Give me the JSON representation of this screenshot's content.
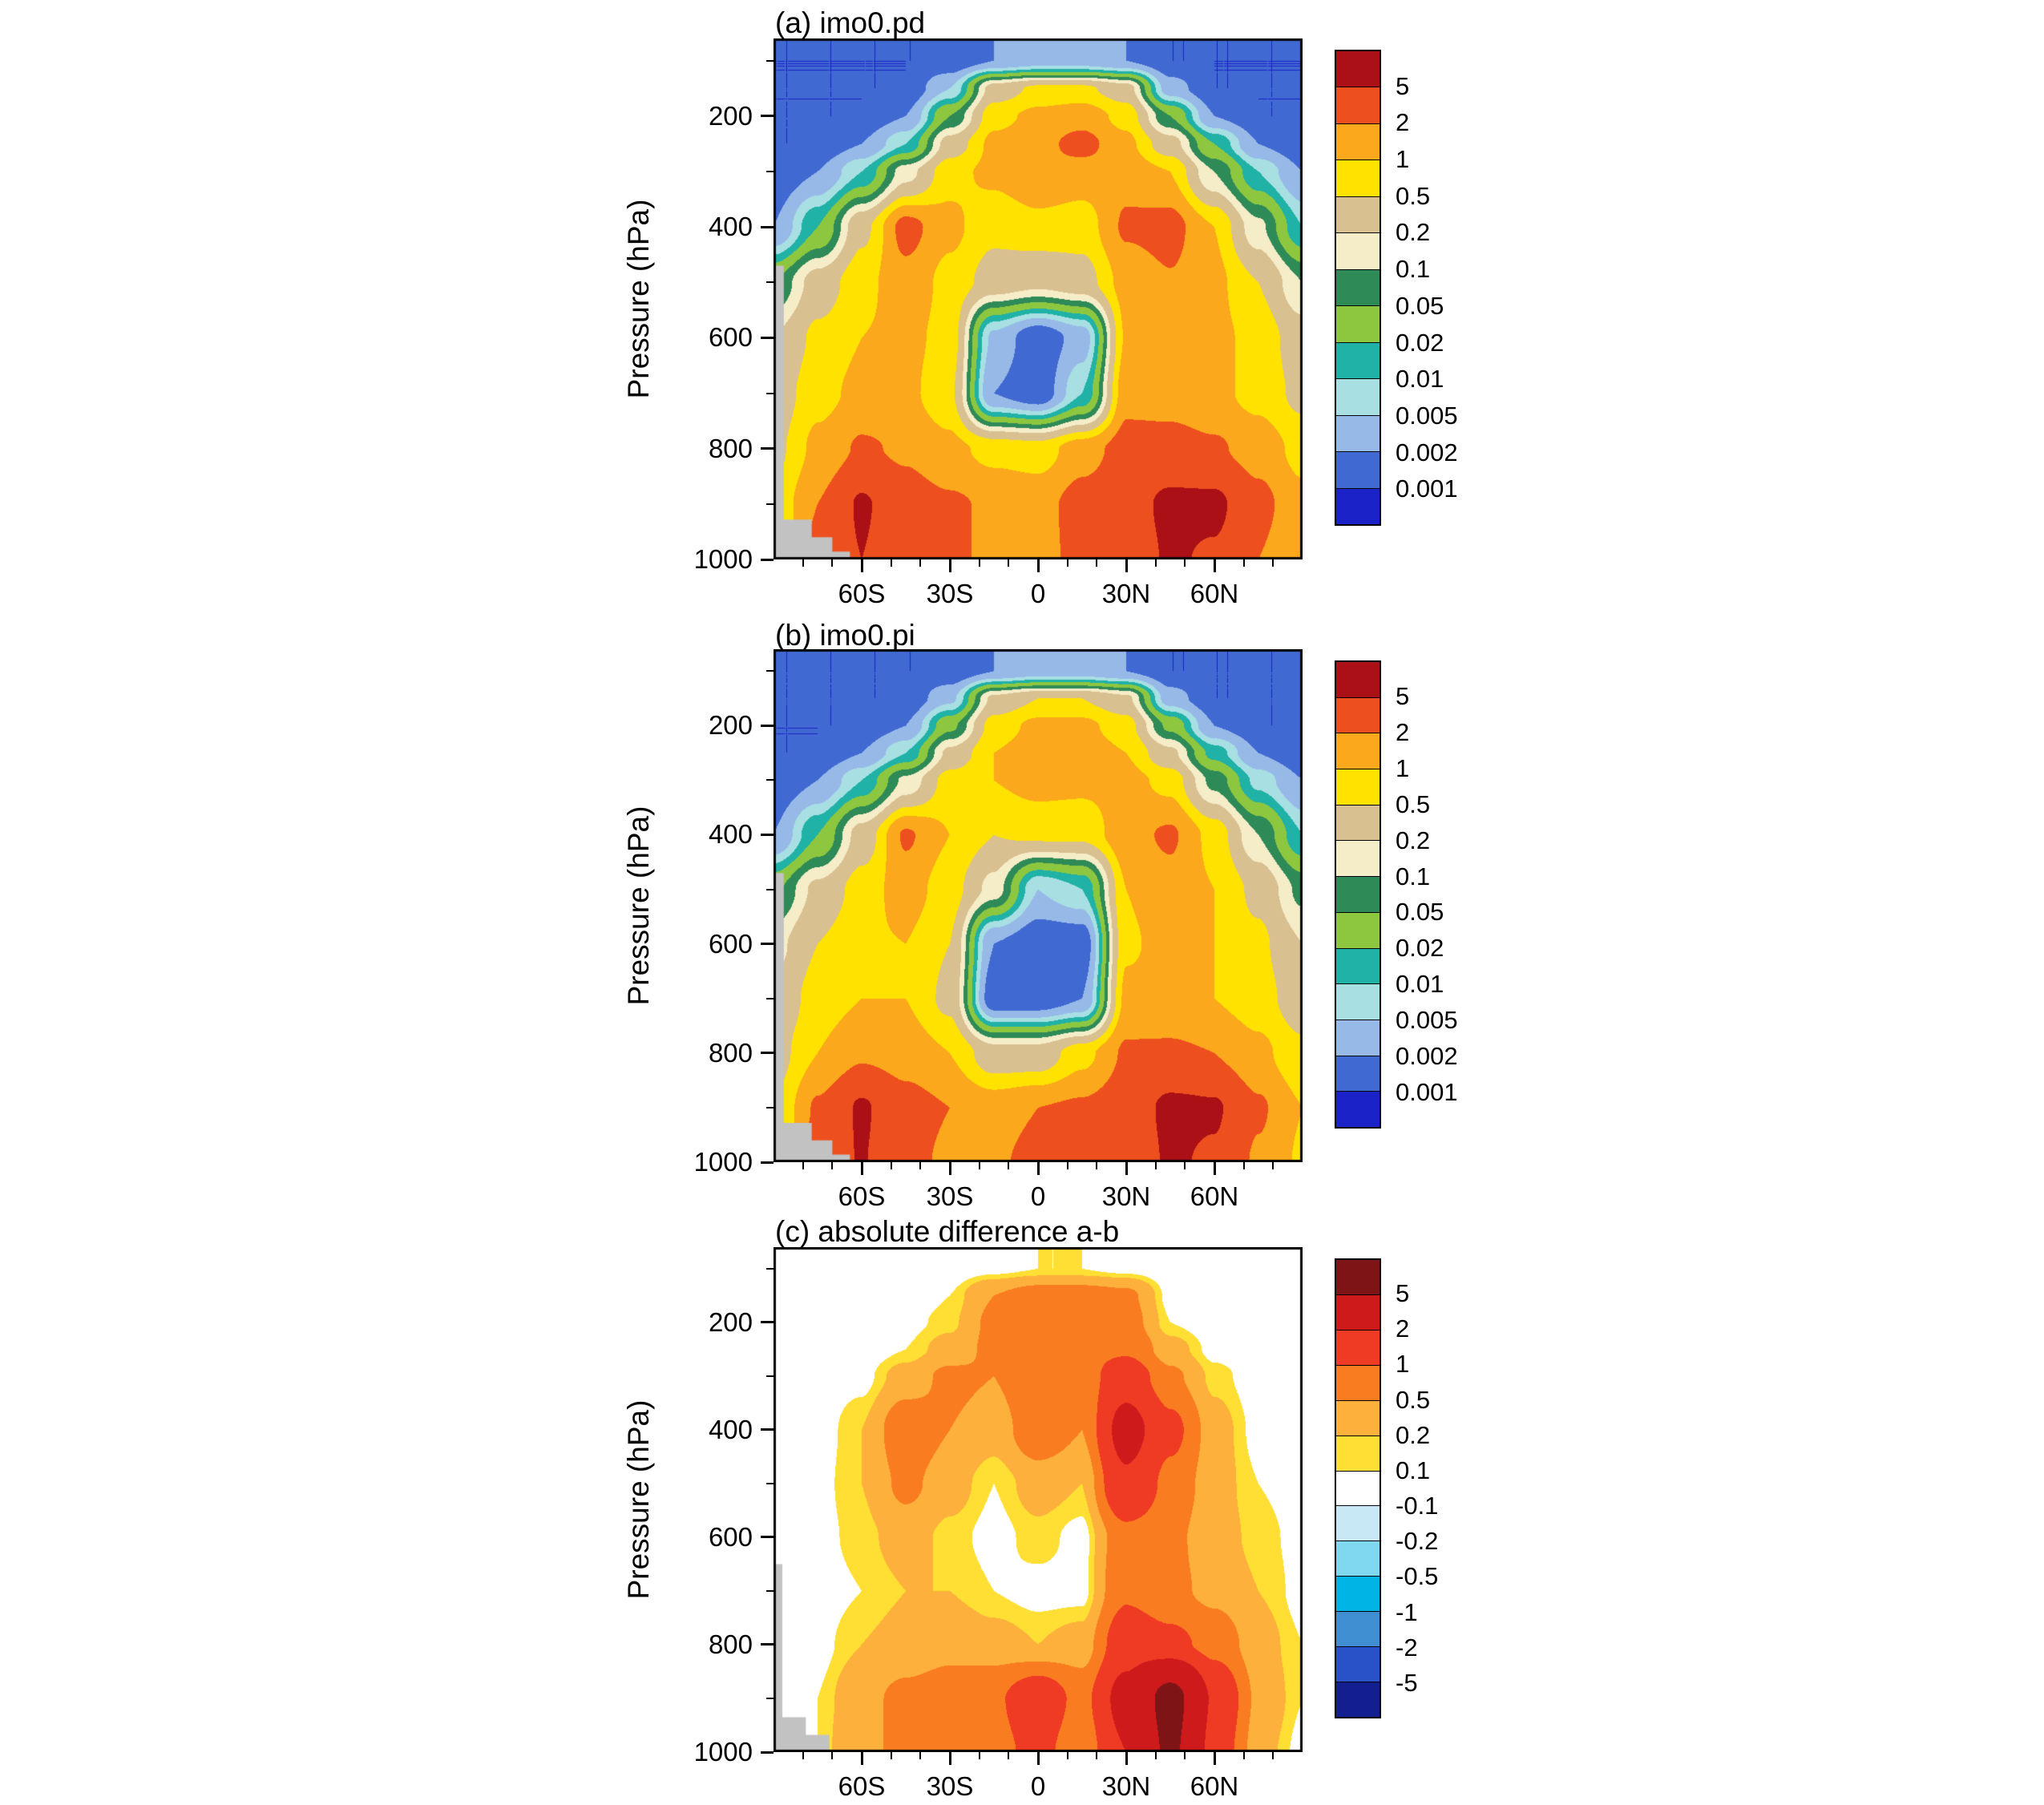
{
  "figure": {
    "background": "#ffffff"
  },
  "axes": {
    "y_label": "Pressure (hPa)",
    "y_ticks": [
      200,
      400,
      600,
      800,
      1000
    ],
    "y_minor_ticks": [
      100,
      300,
      500,
      700,
      900
    ],
    "x_ticks": [
      {
        "lat": -60,
        "label": "60S"
      },
      {
        "lat": -30,
        "label": "30S"
      },
      {
        "lat": 0,
        "label": "0"
      },
      {
        "lat": 30,
        "label": "30N"
      },
      {
        "lat": 60,
        "label": "60N"
      }
    ],
    "x_minor_step": 10,
    "lat_range": [
      -90,
      90
    ],
    "pressure_range": [
      60,
      1000
    ]
  },
  "colorbars": {
    "ab_labels": [
      "5",
      "2",
      "1",
      "0.5",
      "0.2",
      "0.1",
      "0.05",
      "0.02",
      "0.01",
      "0.005",
      "0.002",
      "0.001"
    ],
    "c_labels": [
      "5",
      "2",
      "1",
      "0.5",
      "0.2",
      "0.1",
      "-0.1",
      "-0.2",
      "-0.5",
      "-1",
      "-2",
      "-5"
    ]
  },
  "chart_data": [
    {
      "type": "heatmap",
      "panel": "a",
      "title": "(a) imo0.pd",
      "ylabel": "Pressure (hPa)",
      "scale": "log",
      "x_lats": [
        -90,
        -75,
        -60,
        -45,
        -30,
        -15,
        0,
        15,
        30,
        45,
        60,
        75,
        90
      ],
      "y_pressures": [
        100,
        150,
        200,
        250,
        300,
        400,
        500,
        600,
        700,
        800,
        900,
        1000
      ],
      "values": [
        [
          0.001,
          0.001,
          0.001,
          0.001,
          0.001,
          0.002,
          0.003,
          0.003,
          0.002,
          0.001,
          0.001,
          0.001,
          0.001
        ],
        [
          0.001,
          0.001,
          0.001,
          0.001,
          0.005,
          0.3,
          0.6,
          0.6,
          0.3,
          0.003,
          0.001,
          0.001,
          0.001
        ],
        [
          0.001,
          0.001,
          0.001,
          0.002,
          0.05,
          0.8,
          1.2,
          1.5,
          0.8,
          0.05,
          0.002,
          0.001,
          0.001
        ],
        [
          0.001,
          0.001,
          0.002,
          0.01,
          0.3,
          1.2,
          1.6,
          2.6,
          1.2,
          0.3,
          0.02,
          0.002,
          0.001
        ],
        [
          0.001,
          0.002,
          0.01,
          0.15,
          0.8,
          1.2,
          1.9,
          1.5,
          1.6,
          1.0,
          0.1,
          0.01,
          0.002
        ],
        [
          0.002,
          0.02,
          0.4,
          2.6,
          1.2,
          0.6,
          0.8,
          0.7,
          2.2,
          2.6,
          1.0,
          0.12,
          0.01
        ],
        [
          0.05,
          0.3,
          0.8,
          1.6,
          0.8,
          0.35,
          0.25,
          0.35,
          1.3,
          1.9,
          1.2,
          0.5,
          0.1
        ],
        [
          0.2,
          0.6,
          1.0,
          1.2,
          0.8,
          0.004,
          0.001,
          0.003,
          1.1,
          1.5,
          1.2,
          0.8,
          0.3
        ],
        [
          0.3,
          0.8,
          1.2,
          1.2,
          0.6,
          0.002,
          0.001,
          0.01,
          1.6,
          1.5,
          1.2,
          0.8,
          0.4
        ],
        [
          0.4,
          1.2,
          2.2,
          1.8,
          1.2,
          0.8,
          0.7,
          1.5,
          2.6,
          2.6,
          2.2,
          1.5,
          0.8
        ],
        [
          0.6,
          2.0,
          5.5,
          2.8,
          2.2,
          1.8,
          1.6,
          2.6,
          3.5,
          6.0,
          6.0,
          2.5,
          1.2
        ],
        [
          0.5,
          2.5,
          5.0,
          2.5,
          2.0,
          2.0,
          1.8,
          2.2,
          3.0,
          5.5,
          4.5,
          2.0,
          1.0
        ]
      ],
      "levels": [
        0.001,
        0.002,
        0.005,
        0.01,
        0.02,
        0.05,
        0.1,
        0.2,
        0.5,
        1,
        2,
        5
      ],
      "colors": [
        "#1b23c8",
        "#4169d2",
        "#97b9e8",
        "#a8dfe3",
        "#20b2a6",
        "#8dc63f",
        "#2e8b57",
        "#f5ecc8",
        "#d9c091",
        "#ffe200",
        "#fba81c",
        "#ee4f1e",
        "#ab1016"
      ],
      "terrain_color": "#c2c2c2",
      "terrain_mask": [
        [
          -90,
          470
        ],
        [
          -86.5,
          470
        ],
        [
          -86.5,
          928
        ],
        [
          -77,
          928
        ],
        [
          -77,
          960
        ],
        [
          -70,
          960
        ],
        [
          -70,
          986
        ],
        [
          -64,
          986
        ],
        [
          -64,
          1000
        ],
        [
          -90,
          1000
        ]
      ]
    },
    {
      "type": "heatmap",
      "panel": "b",
      "title": "(b) imo0.pi",
      "ylabel": "Pressure (hPa)",
      "scale": "log",
      "x_lats": [
        -90,
        -75,
        -60,
        -45,
        -30,
        -15,
        0,
        15,
        30,
        45,
        60,
        75,
        90
      ],
      "y_pressures": [
        100,
        150,
        200,
        250,
        300,
        400,
        500,
        600,
        700,
        800,
        900,
        1000
      ],
      "values": [
        [
          0.001,
          0.001,
          0.001,
          0.001,
          0.001,
          0.002,
          0.003,
          0.003,
          0.002,
          0.001,
          0.001,
          0.001,
          0.001
        ],
        [
          0.001,
          0.001,
          0.001,
          0.001,
          0.004,
          0.25,
          0.5,
          0.5,
          0.25,
          0.003,
          0.001,
          0.001,
          0.001
        ],
        [
          0.001,
          0.001,
          0.001,
          0.002,
          0.04,
          0.7,
          1.2,
          1.2,
          0.7,
          0.04,
          0.002,
          0.001,
          0.001
        ],
        [
          0.001,
          0.001,
          0.002,
          0.01,
          0.25,
          1.0,
          1.5,
          1.5,
          1.0,
          0.25,
          0.015,
          0.002,
          0.001
        ],
        [
          0.001,
          0.002,
          0.01,
          0.12,
          0.7,
          1.0,
          1.3,
          1.2,
          1.3,
          0.8,
          0.08,
          0.008,
          0.002
        ],
        [
          0.002,
          0.02,
          0.3,
          2.2,
          1.0,
          0.5,
          0.6,
          0.6,
          1.6,
          2.2,
          0.8,
          0.1,
          0.01
        ],
        [
          0.04,
          0.25,
          0.7,
          1.4,
          0.7,
          0.15,
          0.005,
          0.01,
          1.0,
          1.6,
          1.0,
          0.4,
          0.08
        ],
        [
          0.15,
          0.5,
          0.9,
          1.0,
          0.5,
          0.002,
          0.001,
          0.001,
          0.9,
          1.3,
          1.0,
          0.6,
          0.2
        ],
        [
          0.25,
          0.7,
          1.0,
          1.0,
          0.4,
          0.001,
          0.001,
          0.002,
          1.2,
          1.3,
          1.0,
          0.7,
          0.3
        ],
        [
          0.35,
          1.0,
          1.8,
          1.5,
          1.0,
          0.3,
          0.3,
          0.8,
          2.2,
          2.2,
          2.0,
          1.2,
          0.6
        ],
        [
          0.5,
          2.2,
          5.5,
          2.6,
          2.0,
          1.5,
          2.0,
          2.2,
          3.0,
          6.0,
          5.5,
          2.2,
          1.0
        ],
        [
          0.5,
          3.0,
          5.2,
          2.4,
          1.8,
          1.8,
          2.5,
          2.0,
          2.8,
          5.5,
          4.5,
          1.8,
          0.9
        ]
      ],
      "levels": [
        0.001,
        0.002,
        0.005,
        0.01,
        0.02,
        0.05,
        0.1,
        0.2,
        0.5,
        1,
        2,
        5
      ],
      "colors": [
        "#1b23c8",
        "#4169d2",
        "#97b9e8",
        "#a8dfe3",
        "#20b2a6",
        "#8dc63f",
        "#2e8b57",
        "#f5ecc8",
        "#d9c091",
        "#ffe200",
        "#fba81c",
        "#ee4f1e",
        "#ab1016"
      ],
      "terrain_color": "#c2c2c2",
      "terrain_mask": [
        [
          -90,
          470
        ],
        [
          -86.5,
          470
        ],
        [
          -86.5,
          928
        ],
        [
          -77,
          928
        ],
        [
          -77,
          960
        ],
        [
          -70,
          960
        ],
        [
          -70,
          986
        ],
        [
          -64,
          986
        ],
        [
          -64,
          1000
        ],
        [
          -90,
          1000
        ]
      ]
    },
    {
      "type": "heatmap",
      "panel": "c",
      "title": "(c) absolute difference a-b",
      "ylabel": "Pressure (hPa)",
      "scale": "linear",
      "x_lats": [
        -90,
        -75,
        -60,
        -45,
        -30,
        -15,
        0,
        15,
        30,
        45,
        60,
        75,
        90
      ],
      "y_pressures": [
        100,
        150,
        200,
        250,
        300,
        400,
        500,
        600,
        700,
        800,
        900,
        1000
      ],
      "values": [
        [
          0,
          0,
          0,
          0,
          0,
          0.05,
          0.1,
          0.1,
          0.05,
          0,
          0,
          0,
          0
        ],
        [
          0,
          0,
          0,
          0,
          0.1,
          0.5,
          0.7,
          0.7,
          0.6,
          0.05,
          0,
          0,
          0
        ],
        [
          0,
          0,
          0,
          0.05,
          0.15,
          0.6,
          0.7,
          0.8,
          0.7,
          0.1,
          0,
          0,
          0
        ],
        [
          0,
          0,
          0,
          0.1,
          0.3,
          0.6,
          0.8,
          0.8,
          0.9,
          0.3,
          0.05,
          0,
          0
        ],
        [
          0,
          0,
          0.05,
          0.3,
          0.6,
          0.5,
          0.9,
          0.7,
          1.5,
          0.6,
          0.15,
          0.02,
          0
        ],
        [
          0,
          0.02,
          0.2,
          0.8,
          0.5,
          0.3,
          0.8,
          0.5,
          2.5,
          1.2,
          0.3,
          0.05,
          0
        ],
        [
          0,
          0.05,
          0.2,
          0.6,
          0.3,
          0.1,
          0.3,
          0.2,
          1.8,
          0.8,
          0.3,
          0.1,
          0.02
        ],
        [
          0,
          0.05,
          0.15,
          0.3,
          0.15,
          0.05,
          0.15,
          0.05,
          0.8,
          0.6,
          0.3,
          0.15,
          0.05
        ],
        [
          0,
          0.02,
          0.1,
          0.2,
          0.2,
          0.1,
          0.05,
          0.05,
          0.9,
          0.6,
          0.4,
          0.2,
          0.05
        ],
        [
          0,
          0.05,
          0.2,
          0.3,
          0.4,
          0.3,
          0.2,
          0.3,
          1.5,
          1.2,
          0.8,
          0.3,
          0.1
        ],
        [
          0,
          0.1,
          0.4,
          0.6,
          0.7,
          0.9,
          1.5,
          0.8,
          2.5,
          6.0,
          1.8,
          0.4,
          0.1
        ],
        [
          0,
          0.1,
          0.5,
          0.5,
          0.6,
          0.8,
          1.2,
          0.6,
          2.0,
          5.5,
          1.5,
          0.3,
          0.05
        ]
      ],
      "levels": [
        -5,
        -2,
        -1,
        -0.5,
        -0.2,
        -0.1,
        0.1,
        0.2,
        0.5,
        1,
        2,
        5
      ],
      "colors": [
        "#141f8f",
        "#2a52c8",
        "#3f8fd2",
        "#00b4e6",
        "#7fd8f0",
        "#c9e8f6",
        "#ffffff",
        "#ffdf33",
        "#fdb03c",
        "#f97d20",
        "#f03b24",
        "#cf1a1c",
        "#7f1416"
      ],
      "terrain_color": "#c2c2c2",
      "terrain_mask": [
        [
          -90,
          650
        ],
        [
          -87,
          650
        ],
        [
          -87,
          935
        ],
        [
          -79,
          935
        ],
        [
          -79,
          968
        ],
        [
          -71,
          968
        ],
        [
          -71,
          1000
        ],
        [
          -90,
          1000
        ]
      ]
    }
  ]
}
